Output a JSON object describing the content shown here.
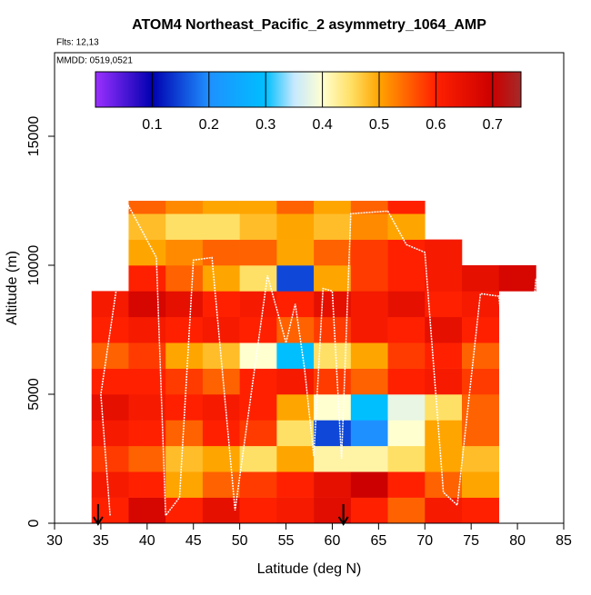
{
  "chart_data": {
    "type": "curtain",
    "title": "ATOM4 Northeast_Pacific_2 asymmetry_1064_AMP",
    "subtitle": "Flts: 12,13",
    "annotation": "MMDD: 0519,0521",
    "x_label": "Latitude (deg N)",
    "y_label": "Altitude (m)",
    "xlim": [
      30,
      85
    ],
    "xticks": [
      30,
      35,
      40,
      45,
      50,
      55,
      60,
      65,
      70,
      75,
      80,
      85
    ],
    "ylim": [
      0,
      18240
    ],
    "yticks": [
      0,
      5000,
      10000,
      15000
    ],
    "x_edges": [
      34,
      38,
      42,
      46,
      50,
      54,
      58,
      62,
      66,
      70,
      74,
      78,
      82
    ],
    "y_edges": [
      0,
      1000,
      2000,
      3000,
      4000,
      5000,
      6000,
      7000,
      8000,
      9000,
      10000,
      11000,
      12000,
      12500
    ],
    "values": [
      [
        0.6,
        0.68,
        0.6,
        0.65,
        0.6,
        0.62,
        0.66,
        0.6,
        0.55,
        0.62,
        0.6,
        null
      ],
      [
        0.62,
        0.6,
        0.5,
        0.55,
        0.58,
        0.6,
        0.65,
        0.7,
        0.6,
        0.55,
        0.5,
        null
      ],
      [
        0.58,
        0.55,
        0.48,
        0.5,
        0.45,
        0.5,
        0.42,
        0.42,
        0.45,
        0.5,
        0.48,
        null
      ],
      [
        0.62,
        0.6,
        0.55,
        0.6,
        0.58,
        0.45,
        0.15,
        0.2,
        0.4,
        0.5,
        0.55,
        null
      ],
      [
        0.65,
        0.62,
        0.6,
        0.62,
        0.6,
        0.5,
        0.4,
        0.3,
        0.38,
        0.45,
        0.55,
        null
      ],
      [
        0.6,
        0.6,
        0.58,
        0.55,
        0.6,
        0.62,
        0.58,
        0.55,
        0.6,
        0.62,
        0.58,
        null
      ],
      [
        0.55,
        0.58,
        0.5,
        0.48,
        0.4,
        0.3,
        0.45,
        0.5,
        0.58,
        0.6,
        0.55,
        null
      ],
      [
        0.6,
        0.62,
        0.6,
        0.62,
        0.6,
        0.55,
        0.58,
        0.62,
        0.6,
        0.65,
        0.6,
        null
      ],
      [
        0.62,
        0.68,
        0.65,
        0.6,
        0.62,
        0.6,
        0.65,
        0.62,
        0.65,
        0.6,
        0.62,
        null
      ],
      [
        null,
        0.6,
        0.55,
        0.5,
        0.45,
        0.15,
        0.5,
        0.58,
        0.6,
        0.62,
        0.65,
        0.68
      ],
      [
        null,
        0.5,
        0.52,
        0.55,
        0.55,
        0.5,
        0.55,
        0.58,
        0.6,
        0.62,
        null,
        null
      ],
      [
        null,
        0.48,
        0.45,
        0.45,
        0.48,
        0.5,
        0.48,
        0.52,
        0.5,
        null,
        null,
        null
      ],
      [
        null,
        0.55,
        0.52,
        0.5,
        0.5,
        0.55,
        0.5,
        0.55,
        0.6,
        null,
        null,
        null
      ]
    ],
    "colorbar": {
      "lim": [
        0,
        0.75
      ],
      "ticks": [
        0.1,
        0.2,
        0.3,
        0.4,
        0.5,
        0.6,
        0.7
      ],
      "scale": [
        [
          0,
          "#9b30ff"
        ],
        [
          0.1,
          "#0000b0"
        ],
        [
          0.2,
          "#1e90ff"
        ],
        [
          0.3,
          "#00bfff"
        ],
        [
          0.35,
          "#c6e8ff"
        ],
        [
          0.4,
          "#ffffd0"
        ],
        [
          0.45,
          "#ffe066"
        ],
        [
          0.5,
          "#ffa500"
        ],
        [
          0.6,
          "#ff2000"
        ],
        [
          0.7,
          "#cc0000"
        ],
        [
          0.75,
          "#a52a2a"
        ]
      ]
    },
    "track": {
      "color": "#ffffff",
      "x": [
        36,
        35,
        38,
        41,
        42,
        43.5,
        45,
        47,
        49.5,
        53,
        55,
        56,
        57,
        58,
        59,
        60,
        61,
        62,
        66,
        68,
        70,
        72,
        73.5,
        76,
        78,
        80,
        82
      ],
      "y": [
        300,
        5000,
        12300,
        10300,
        300,
        1000,
        10200,
        10300,
        500,
        9600,
        7000,
        8500,
        6000,
        2600,
        9100,
        9000,
        2500,
        12000,
        12100,
        10800,
        10500,
        1200,
        700,
        8900,
        8800,
        600,
        9500
      ]
    },
    "arrows_x": [
      34.7,
      61.2
    ]
  }
}
